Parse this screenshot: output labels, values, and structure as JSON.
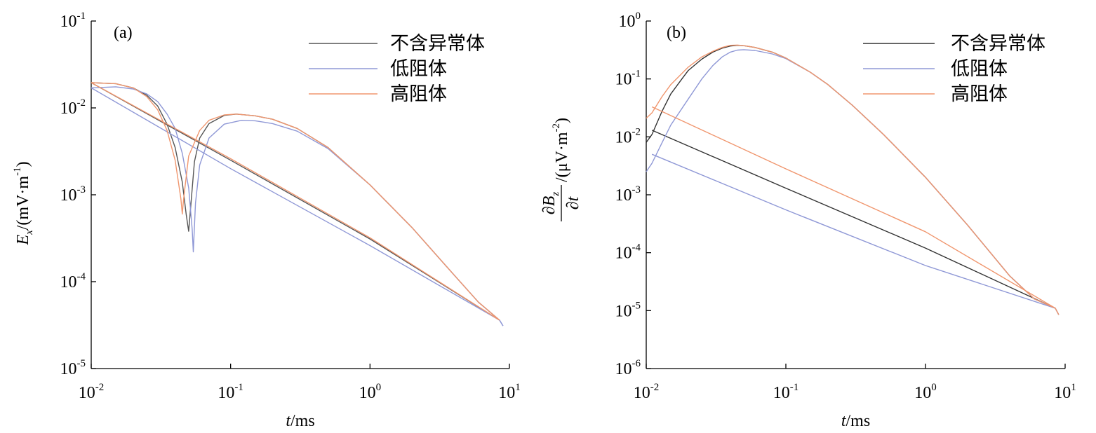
{
  "chart_data": [
    {
      "type": "line",
      "panel_label": "(a)",
      "x_scale": "log",
      "y_scale": "log",
      "xlim": [
        0.01,
        10
      ],
      "ylim": [
        1e-05,
        0.1
      ],
      "xlabel": {
        "var": "t",
        "unit": "/ms"
      },
      "ylabel": {
        "var": "E",
        "sub": "x",
        "unit": "/(mV·m",
        "sup": "-1",
        "close": ")"
      },
      "x_ticks": [
        {
          "value": 0.01,
          "base": "10",
          "exp": "-2"
        },
        {
          "value": 0.1,
          "base": "10",
          "exp": "-1"
        },
        {
          "value": 1,
          "base": "10",
          "exp": "0"
        },
        {
          "value": 10,
          "base": "10",
          "exp": "1"
        }
      ],
      "y_ticks": [
        {
          "value": 1e-05,
          "base": "10",
          "exp": "-5"
        },
        {
          "value": 0.0001,
          "base": "10",
          "exp": "-4"
        },
        {
          "value": 0.001,
          "base": "10",
          "exp": "-3"
        },
        {
          "value": 0.01,
          "base": "10",
          "exp": "-2"
        },
        {
          "value": 0.1,
          "base": "10",
          "exp": "-1"
        }
      ],
      "legend": {
        "position": "top-right"
      },
      "series": [
        {
          "name": "不含异常体",
          "color": "#555555",
          "curves": [
            [
              [
                0.01,
                0.0195
              ],
              [
                0.015,
                0.019
              ],
              [
                0.02,
                0.017
              ],
              [
                0.025,
                0.014
              ],
              [
                0.03,
                0.0105
              ],
              [
                0.035,
                0.0065
              ],
              [
                0.04,
                0.0035
              ],
              [
                0.045,
                0.0014
              ],
              [
                0.048,
                0.0006
              ],
              [
                0.05,
                0.00038
              ],
              [
                0.052,
                0.0008
              ],
              [
                0.055,
                0.0024
              ],
              [
                0.06,
                0.0045
              ],
              [
                0.07,
                0.0066
              ],
              [
                0.09,
                0.0082
              ],
              [
                0.11,
                0.0085
              ],
              [
                0.15,
                0.0081
              ],
              [
                0.2,
                0.0074
              ],
              [
                0.3,
                0.0058
              ],
              [
                0.5,
                0.0035
              ],
              [
                1.0,
                0.0013
              ],
              [
                2.0,
                0.00042
              ],
              [
                4.0,
                0.00012
              ],
              [
                6.0,
                5.8e-05
              ],
              [
                8.5,
                3.6e-05
              ]
            ],
            [
              [
                0.01,
                0.0195
              ],
              [
                0.1,
                0.0025
              ],
              [
                1.0,
                0.00031
              ],
              [
                8.5,
                3.6e-05
              ]
            ]
          ]
        },
        {
          "name": "低阻体",
          "color": "#8f98d6",
          "curves": [
            [
              [
                0.01,
                0.017
              ],
              [
                0.015,
                0.0175
              ],
              [
                0.02,
                0.0165
              ],
              [
                0.025,
                0.0145
              ],
              [
                0.03,
                0.0118
              ],
              [
                0.035,
                0.0085
              ],
              [
                0.04,
                0.0058
              ],
              [
                0.045,
                0.003
              ],
              [
                0.05,
                0.0012
              ],
              [
                0.053,
                0.0004
              ],
              [
                0.054,
                0.00022
              ],
              [
                0.056,
                0.0008
              ],
              [
                0.06,
                0.0022
              ],
              [
                0.07,
                0.0045
              ],
              [
                0.09,
                0.0065
              ],
              [
                0.12,
                0.0072
              ],
              [
                0.15,
                0.0071
              ],
              [
                0.2,
                0.0066
              ],
              [
                0.3,
                0.0054
              ],
              [
                0.5,
                0.0034
              ],
              [
                1.0,
                0.0013
              ],
              [
                2.0,
                0.00042
              ],
              [
                4.0,
                0.00012
              ],
              [
                6.0,
                5.8e-05
              ],
              [
                8.5,
                3.6e-05
              ],
              [
                9.0,
                3.1e-05
              ]
            ],
            [
              [
                0.01,
                0.017
              ],
              [
                0.1,
                0.002
              ],
              [
                1.0,
                0.00026
              ],
              [
                8.5,
                3.6e-05
              ],
              [
                9.0,
                3.1e-05
              ]
            ]
          ]
        },
        {
          "name": "高阻体",
          "color": "#f0966e",
          "curves": [
            [
              [
                0.01,
                0.0195
              ],
              [
                0.015,
                0.019
              ],
              [
                0.02,
                0.017
              ],
              [
                0.025,
                0.0135
              ],
              [
                0.03,
                0.0095
              ],
              [
                0.035,
                0.0055
              ],
              [
                0.04,
                0.0025
              ],
              [
                0.044,
                0.0009
              ],
              [
                0.045,
                0.0006
              ],
              [
                0.046,
                0.0009
              ],
              [
                0.05,
                0.0028
              ],
              [
                0.06,
                0.0055
              ],
              [
                0.07,
                0.0072
              ],
              [
                0.09,
                0.0083
              ],
              [
                0.11,
                0.0085
              ],
              [
                0.15,
                0.0081
              ],
              [
                0.2,
                0.0074
              ],
              [
                0.3,
                0.0058
              ],
              [
                0.5,
                0.0035
              ],
              [
                1.0,
                0.0013
              ],
              [
                2.0,
                0.00042
              ],
              [
                4.0,
                0.00012
              ],
              [
                6.0,
                5.8e-05
              ],
              [
                8.5,
                3.6e-05
              ]
            ],
            [
              [
                0.01,
                0.0195
              ],
              [
                0.1,
                0.0026
              ],
              [
                1.0,
                0.00032
              ],
              [
                8.5,
                3.6e-05
              ]
            ]
          ]
        }
      ]
    },
    {
      "type": "line",
      "panel_label": "(b)",
      "x_scale": "log",
      "y_scale": "log",
      "xlim": [
        0.01,
        10
      ],
      "ylim": [
        1e-06,
        1
      ],
      "xlabel": {
        "var": "t",
        "unit": "/ms"
      },
      "ylabel": {
        "num_partial": "∂",
        "num_var": "B",
        "num_sub": "z",
        "den_partial": "∂",
        "den_var": "t",
        "unit": "/(μV·m",
        "sup": "-2",
        "close": ")"
      },
      "x_ticks": [
        {
          "value": 0.01,
          "base": "10",
          "exp": "-2"
        },
        {
          "value": 0.1,
          "base": "10",
          "exp": "-1"
        },
        {
          "value": 1,
          "base": "10",
          "exp": "0"
        },
        {
          "value": 10,
          "base": "10",
          "exp": "1"
        }
      ],
      "y_ticks": [
        {
          "value": 1e-06,
          "base": "10",
          "exp": "-6"
        },
        {
          "value": 1e-05,
          "base": "10",
          "exp": "-5"
        },
        {
          "value": 0.0001,
          "base": "10",
          "exp": "-4"
        },
        {
          "value": 0.001,
          "base": "10",
          "exp": "-3"
        },
        {
          "value": 0.01,
          "base": "10",
          "exp": "-2"
        },
        {
          "value": 0.1,
          "base": "10",
          "exp": "-1"
        },
        {
          "value": 1,
          "base": "10",
          "exp": "0"
        }
      ],
      "legend": {
        "position": "top-right"
      },
      "series": [
        {
          "name": "不含异常体",
          "color": "#333333",
          "curves": [
            [
              [
                0.01,
                0.008
              ],
              [
                0.011,
                0.011
              ],
              [
                0.013,
                0.028
              ],
              [
                0.015,
                0.055
              ],
              [
                0.018,
                0.1
              ],
              [
                0.02,
                0.14
              ],
              [
                0.025,
                0.22
              ],
              [
                0.03,
                0.29
              ],
              [
                0.035,
                0.34
              ],
              [
                0.04,
                0.37
              ],
              [
                0.045,
                0.38
              ],
              [
                0.05,
                0.375
              ],
              [
                0.06,
                0.35
              ],
              [
                0.08,
                0.29
              ],
              [
                0.1,
                0.23
              ],
              [
                0.15,
                0.13
              ],
              [
                0.2,
                0.08
              ],
              [
                0.3,
                0.035
              ],
              [
                0.5,
                0.011
              ],
              [
                1.0,
                0.002
              ],
              [
                2.0,
                0.0003
              ],
              [
                4.0,
                4e-05
              ],
              [
                6.0,
                1.6e-05
              ],
              [
                8.5,
                1.1e-05
              ],
              [
                9.0,
                8.5e-06
              ]
            ],
            [
              [
                0.011,
                0.013
              ],
              [
                0.1,
                0.0013
              ],
              [
                1.0,
                0.00012
              ],
              [
                8.5,
                1.1e-05
              ]
            ]
          ]
        },
        {
          "name": "低阻体",
          "color": "#8f98d6",
          "curves": [
            [
              [
                0.01,
                0.0025
              ],
              [
                0.011,
                0.0035
              ],
              [
                0.013,
                0.008
              ],
              [
                0.015,
                0.016
              ],
              [
                0.02,
                0.045
              ],
              [
                0.025,
                0.1
              ],
              [
                0.03,
                0.17
              ],
              [
                0.035,
                0.24
              ],
              [
                0.04,
                0.29
              ],
              [
                0.045,
                0.315
              ],
              [
                0.05,
                0.32
              ],
              [
                0.06,
                0.31
              ],
              [
                0.08,
                0.27
              ],
              [
                0.1,
                0.225
              ],
              [
                0.15,
                0.13
              ],
              [
                0.2,
                0.08
              ],
              [
                0.3,
                0.035
              ],
              [
                0.5,
                0.011
              ],
              [
                1.0,
                0.002
              ],
              [
                2.0,
                0.0003
              ],
              [
                4.0,
                4e-05
              ],
              [
                6.0,
                1.6e-05
              ],
              [
                8.5,
                1.1e-05
              ],
              [
                9.0,
                8.5e-06
              ]
            ],
            [
              [
                0.011,
                0.005
              ],
              [
                0.1,
                0.00055
              ],
              [
                1.0,
                6e-05
              ],
              [
                8.5,
                1.1e-05
              ]
            ]
          ]
        },
        {
          "name": "高阻体",
          "color": "#f0966e",
          "curves": [
            [
              [
                0.01,
                0.021
              ],
              [
                0.011,
                0.026
              ],
              [
                0.013,
                0.05
              ],
              [
                0.015,
                0.08
              ],
              [
                0.02,
                0.16
              ],
              [
                0.025,
                0.24
              ],
              [
                0.03,
                0.3
              ],
              [
                0.035,
                0.35
              ],
              [
                0.04,
                0.38
              ],
              [
                0.045,
                0.385
              ],
              [
                0.05,
                0.375
              ],
              [
                0.06,
                0.35
              ],
              [
                0.08,
                0.29
              ],
              [
                0.1,
                0.23
              ],
              [
                0.15,
                0.13
              ],
              [
                0.2,
                0.08
              ],
              [
                0.3,
                0.035
              ],
              [
                0.5,
                0.011
              ],
              [
                1.0,
                0.002
              ],
              [
                2.0,
                0.0003
              ],
              [
                4.0,
                4e-05
              ],
              [
                6.0,
                1.6e-05
              ],
              [
                8.5,
                1.1e-05
              ],
              [
                9.0,
                8.5e-06
              ]
            ],
            [
              [
                0.011,
                0.033
              ],
              [
                0.1,
                0.0028
              ],
              [
                1.0,
                0.00023
              ],
              [
                8.5,
                1.1e-05
              ]
            ]
          ]
        }
      ]
    }
  ]
}
